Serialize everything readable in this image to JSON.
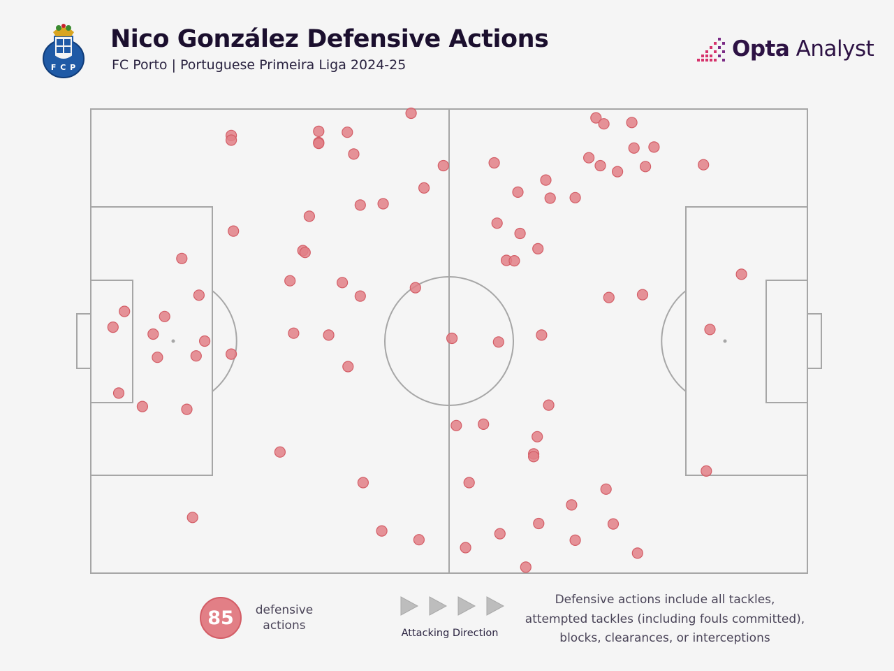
{
  "header": {
    "title": "Nico González Defensive Actions",
    "subtitle": "FC Porto | Portuguese Primeira Liga 2024-25",
    "club_badge_icon": "fc-porto-crest-icon",
    "badge_text": "F C P",
    "brand_icon": "opta-stepped-bars-icon",
    "brand_bold": "Opta",
    "brand_light": " Analyst"
  },
  "colors": {
    "background": "#f5f5f5",
    "pitch_lines": "#a6a6a6",
    "action_fill": "#e27f86",
    "action_stroke": "#d35d66",
    "title": "#1b0f2e",
    "brand": "#2d1244",
    "brand_accent": "#d6336c"
  },
  "footer": {
    "count_value": "85",
    "count_label": "defensive actions",
    "direction_label": "Attacking Direction",
    "direction_icon": "right-arrow-icon",
    "definition_line1": "Defensive actions include all tackles,",
    "definition_line2": "attempted tackles (including fouls committed),",
    "definition_line3": "blocks, clearances, or interceptions"
  },
  "chart_data": {
    "type": "scatter",
    "pitch": "full pitch, horizontal",
    "attacking_direction": "left-to-right",
    "xlim": [
      0,
      100
    ],
    "ylim": [
      0,
      100
    ],
    "grid": false,
    "legend": "none",
    "points": [
      {
        "x": 19.6,
        "y": 94.3
      },
      {
        "x": 19.6,
        "y": 93.3
      },
      {
        "x": 31.8,
        "y": 95.2
      },
      {
        "x": 31.8,
        "y": 92.8
      },
      {
        "x": 31.8,
        "y": 92.6
      },
      {
        "x": 35.8,
        "y": 95.0
      },
      {
        "x": 36.7,
        "y": 90.3
      },
      {
        "x": 44.7,
        "y": 99.1
      },
      {
        "x": 46.5,
        "y": 83.0
      },
      {
        "x": 37.6,
        "y": 79.3
      },
      {
        "x": 40.8,
        "y": 79.6
      },
      {
        "x": 30.5,
        "y": 76.9
      },
      {
        "x": 19.9,
        "y": 73.7
      },
      {
        "x": 29.6,
        "y": 69.5
      },
      {
        "x": 29.9,
        "y": 69.1
      },
      {
        "x": 12.7,
        "y": 67.8
      },
      {
        "x": 27.8,
        "y": 63.0
      },
      {
        "x": 35.1,
        "y": 62.6
      },
      {
        "x": 37.6,
        "y": 59.7
      },
      {
        "x": 45.3,
        "y": 61.5
      },
      {
        "x": 15.1,
        "y": 59.9
      },
      {
        "x": 4.7,
        "y": 56.4
      },
      {
        "x": 10.3,
        "y": 55.3
      },
      {
        "x": 3.1,
        "y": 53.0
      },
      {
        "x": 8.7,
        "y": 51.5
      },
      {
        "x": 15.9,
        "y": 50.0
      },
      {
        "x": 28.3,
        "y": 51.7
      },
      {
        "x": 33.2,
        "y": 51.3
      },
      {
        "x": 9.3,
        "y": 46.5
      },
      {
        "x": 14.7,
        "y": 46.8
      },
      {
        "x": 19.6,
        "y": 47.2
      },
      {
        "x": 35.9,
        "y": 44.5
      },
      {
        "x": 3.9,
        "y": 38.8
      },
      {
        "x": 7.2,
        "y": 35.9
      },
      {
        "x": 13.4,
        "y": 35.3
      },
      {
        "x": 26.4,
        "y": 26.1
      },
      {
        "x": 38.0,
        "y": 19.5
      },
      {
        "x": 14.2,
        "y": 12.0
      },
      {
        "x": 40.6,
        "y": 9.1
      },
      {
        "x": 45.8,
        "y": 7.2
      },
      {
        "x": 70.5,
        "y": 98.1
      },
      {
        "x": 71.6,
        "y": 96.8
      },
      {
        "x": 75.5,
        "y": 97.1
      },
      {
        "x": 75.8,
        "y": 91.6
      },
      {
        "x": 78.6,
        "y": 91.8
      },
      {
        "x": 69.5,
        "y": 89.5
      },
      {
        "x": 71.1,
        "y": 87.8
      },
      {
        "x": 73.5,
        "y": 86.5
      },
      {
        "x": 77.4,
        "y": 87.6
      },
      {
        "x": 85.5,
        "y": 88.0
      },
      {
        "x": 49.2,
        "y": 87.8
      },
      {
        "x": 56.3,
        "y": 88.4
      },
      {
        "x": 63.5,
        "y": 84.7
      },
      {
        "x": 59.6,
        "y": 82.1
      },
      {
        "x": 64.1,
        "y": 80.8
      },
      {
        "x": 67.6,
        "y": 80.9
      },
      {
        "x": 56.7,
        "y": 75.4
      },
      {
        "x": 59.9,
        "y": 73.2
      },
      {
        "x": 62.4,
        "y": 69.9
      },
      {
        "x": 58.0,
        "y": 67.4
      },
      {
        "x": 59.1,
        "y": 67.3
      },
      {
        "x": 90.8,
        "y": 64.4
      },
      {
        "x": 72.3,
        "y": 59.4
      },
      {
        "x": 77.0,
        "y": 60.0
      },
      {
        "x": 50.4,
        "y": 50.6
      },
      {
        "x": 56.9,
        "y": 49.8
      },
      {
        "x": 62.9,
        "y": 51.3
      },
      {
        "x": 86.4,
        "y": 52.5
      },
      {
        "x": 63.9,
        "y": 36.2
      },
      {
        "x": 51.0,
        "y": 31.8
      },
      {
        "x": 54.8,
        "y": 32.1
      },
      {
        "x": 62.3,
        "y": 29.4
      },
      {
        "x": 61.8,
        "y": 25.7
      },
      {
        "x": 61.8,
        "y": 25.1
      },
      {
        "x": 85.9,
        "y": 22.0
      },
      {
        "x": 52.8,
        "y": 19.5
      },
      {
        "x": 71.9,
        "y": 18.1
      },
      {
        "x": 67.1,
        "y": 14.7
      },
      {
        "x": 62.5,
        "y": 10.7
      },
      {
        "x": 57.1,
        "y": 8.5
      },
      {
        "x": 72.9,
        "y": 10.6
      },
      {
        "x": 67.6,
        "y": 7.1
      },
      {
        "x": 52.3,
        "y": 5.5
      },
      {
        "x": 76.3,
        "y": 4.3
      },
      {
        "x": 60.7,
        "y": 1.3
      }
    ]
  }
}
